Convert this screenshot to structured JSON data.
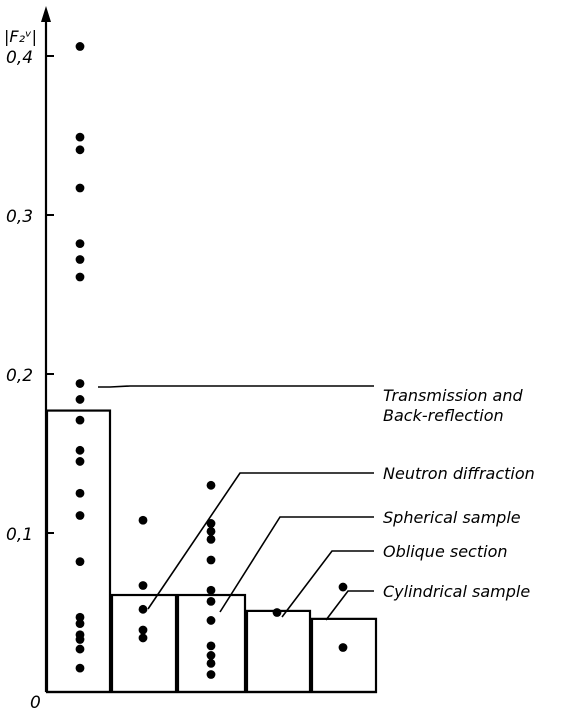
{
  "chart_data": {
    "type": "bar",
    "ylabel": "|F₂ᵛ|",
    "ylim": [
      0,
      0.44
    ],
    "yticks": [
      {
        "value": 0,
        "label": "0"
      },
      {
        "value": 0.1,
        "label": "0,1"
      },
      {
        "value": 0.2,
        "label": "0,2"
      },
      {
        "value": 0.3,
        "label": "0,3"
      },
      {
        "value": 0.4,
        "label": "0,4"
      }
    ],
    "grid": false,
    "legend": "none",
    "groups": [
      {
        "label_lines": [
          "Transmission and",
          "Back-reflection"
        ],
        "bar": 0.177,
        "points": [
          0.406,
          0.349,
          0.341,
          0.317,
          0.282,
          0.272,
          0.261,
          0.194,
          0.184,
          0.171,
          0.152,
          0.145,
          0.125,
          0.111,
          0.082,
          0.047,
          0.043,
          0.036,
          0.033,
          0.027,
          0.015
        ]
      },
      {
        "label_lines": [
          "Neutron diffraction"
        ],
        "bar": 0.061,
        "points": [
          0.108,
          0.067,
          0.052,
          0.039,
          0.034
        ]
      },
      {
        "label_lines": [
          "Spherical sample"
        ],
        "bar": 0.061,
        "points": [
          0.13,
          0.106,
          0.101,
          0.096,
          0.083,
          0.064,
          0.057,
          0.045,
          0.029,
          0.023,
          0.018,
          0.011
        ]
      },
      {
        "label_lines": [
          "Oblique section"
        ],
        "bar": 0.051,
        "points": [
          0.05
        ]
      },
      {
        "label_lines": [
          "Cylindrical sample"
        ],
        "bar": 0.046,
        "points": [
          0.066,
          0.028
        ]
      }
    ]
  }
}
